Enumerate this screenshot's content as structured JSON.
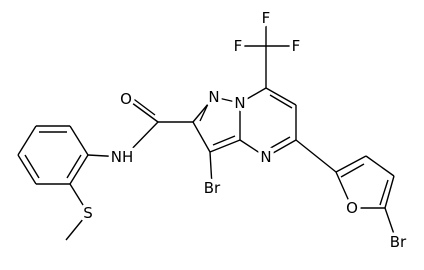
{
  "atoms": [
    {
      "label": "F"
    },
    {
      "label": "F"
    },
    {
      "label": "F"
    },
    {
      "label": "N"
    },
    {
      "label": "N"
    },
    {
      "label": "N"
    },
    {
      "label": "O"
    },
    {
      "label": "NH"
    },
    {
      "label": "Br"
    },
    {
      "label": "O"
    },
    {
      "label": "Br"
    },
    {
      "label": "S"
    }
  ]
}
